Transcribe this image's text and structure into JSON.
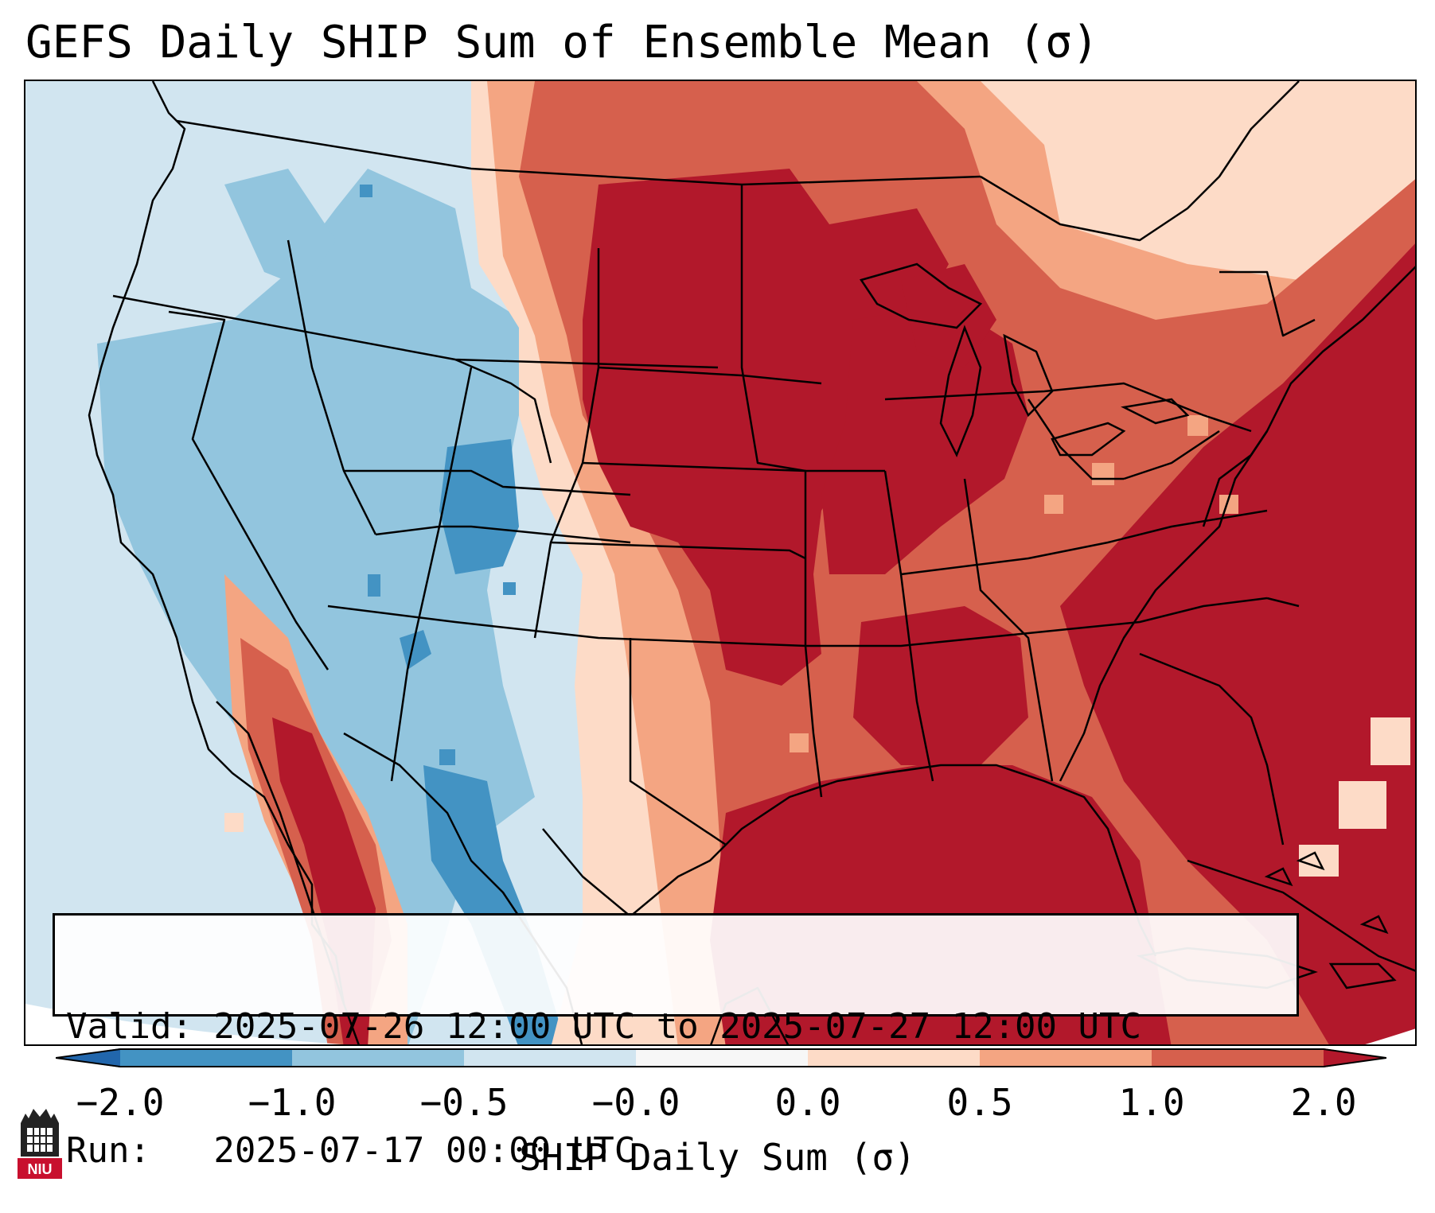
{
  "title": "GEFS Daily SHIP Sum of Ensemble Mean (σ)",
  "valid_line": "Valid: 2025-07-26 12:00 UTC to 2025-07-27 12:00 UTC",
  "run_line": "Run:   2025-07-17 00:00 UTC",
  "colorbar": {
    "label": "SHIP Daily Sum (σ)",
    "tick_labels": [
      "−2.0",
      "−1.0",
      "−0.5",
      "−0.0",
      "0.0",
      "0.5",
      "1.0",
      "2.0"
    ],
    "colors": [
      "#2166ac",
      "#4393c3",
      "#92c5de",
      "#d1e5f0",
      "#f7f7f7",
      "#fddbc7",
      "#f4a582",
      "#d6604d",
      "#b2182b"
    ]
  },
  "logo_text": "NIU",
  "colors": {
    "strong_negative": "#4393c3",
    "moderate_negative": "#92c5de",
    "weak_negative": "#d1e5f0",
    "weak_positive": "#fddbc7",
    "moderate_positive": "#f4a582",
    "strong_positive": "#d6604d",
    "very_strong_positive": "#b2182b"
  }
}
